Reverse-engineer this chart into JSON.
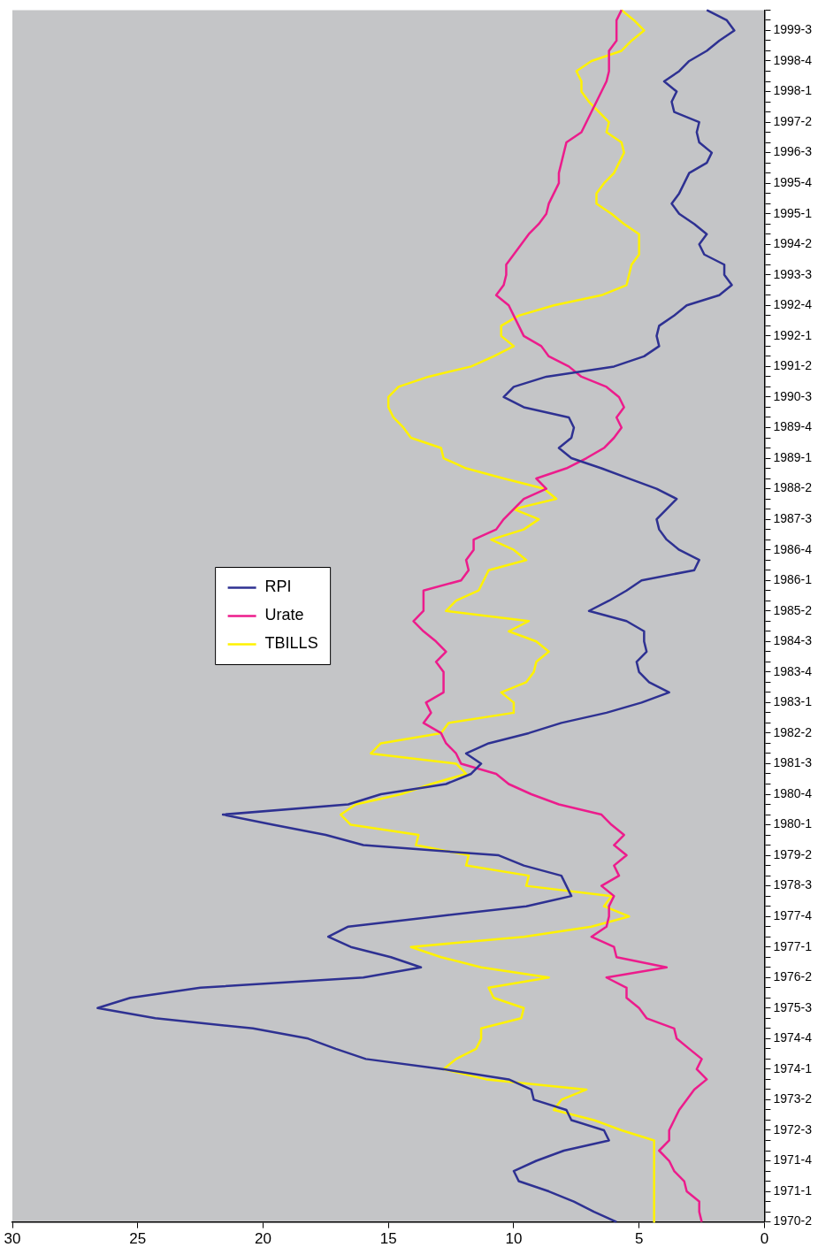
{
  "chart_data": {
    "type": "line",
    "categories": [
      null,
      null,
      "1999-3",
      null,
      null,
      "1998-4",
      null,
      null,
      "1998-1",
      null,
      null,
      "1997-2",
      null,
      null,
      "1996-3",
      null,
      null,
      "1995-4",
      null,
      null,
      "1995-1",
      null,
      null,
      "1994-2",
      null,
      null,
      "1993-3",
      null,
      null,
      "1992-4",
      null,
      null,
      "1992-1",
      null,
      null,
      "1991-2",
      null,
      null,
      "1990-3",
      null,
      null,
      "1989-4",
      null,
      null,
      "1989-1",
      null,
      null,
      "1988-2",
      null,
      null,
      "1987-3",
      null,
      null,
      "1986-4",
      null,
      null,
      "1986-1",
      null,
      null,
      "1985-2",
      null,
      null,
      "1984-3",
      null,
      null,
      "1983-4",
      null,
      null,
      "1983-1",
      null,
      null,
      "1982-2",
      null,
      null,
      "1981-3",
      null,
      null,
      "1980-4",
      null,
      null,
      "1980-1",
      null,
      null,
      "1979-2",
      null,
      null,
      "1978-3",
      null,
      null,
      "1977-4",
      null,
      null,
      "1977-1",
      null,
      null,
      "1976-2",
      null,
      null,
      "1975-3",
      null,
      null,
      "1974-4",
      null,
      null,
      "1974-1",
      null,
      null,
      "1973-2",
      null,
      null,
      "1972-3",
      null,
      null,
      "1971-4",
      null,
      null,
      "1971-1",
      null,
      null,
      "1970-2"
    ],
    "series": [
      {
        "name": "RPI",
        "color": "#2e3192",
        "values": [
          2.3,
          1.5,
          1.2,
          1.8,
          2.3,
          3.0,
          3.4,
          4.0,
          3.5,
          3.7,
          3.6,
          2.6,
          2.7,
          2.6,
          2.1,
          2.3,
          3.0,
          3.2,
          3.4,
          3.7,
          3.4,
          2.8,
          2.3,
          2.6,
          2.4,
          1.6,
          1.6,
          1.3,
          1.8,
          3.1,
          3.6,
          4.2,
          4.3,
          4.2,
          4.8,
          6.0,
          8.7,
          10.0,
          10.4,
          9.6,
          7.8,
          7.6,
          7.7,
          8.2,
          7.7,
          6.5,
          5.4,
          4.3,
          3.5,
          3.9,
          4.3,
          4.2,
          3.9,
          3.4,
          2.6,
          2.8,
          4.9,
          5.5,
          6.2,
          7.0,
          5.5,
          4.8,
          4.8,
          4.7,
          5.1,
          5.0,
          4.6,
          3.8,
          4.9,
          6.3,
          8.1,
          9.4,
          11.0,
          11.9,
          11.3,
          11.7,
          12.7,
          15.3,
          16.6,
          21.6,
          19.6,
          17.5,
          16.0,
          10.6,
          9.6,
          8.1,
          7.9,
          7.7,
          9.5,
          13.1,
          16.6,
          17.4,
          16.5,
          14.9,
          13.7,
          16.0,
          22.5,
          25.3,
          26.6,
          24.3,
          20.4,
          18.2,
          17.1,
          15.9,
          12.8,
          10.2,
          9.3,
          9.2,
          7.9,
          7.7,
          6.4,
          6.2,
          8.0,
          9.1,
          10.0,
          9.8,
          8.6,
          7.6,
          6.8,
          5.9
        ]
      },
      {
        "name": "Urate",
        "color": "#ec1c8c",
        "values": [
          5.7,
          5.9,
          5.9,
          5.9,
          6.2,
          6.2,
          6.2,
          6.3,
          6.5,
          6.7,
          6.9,
          7.1,
          7.3,
          7.9,
          8.0,
          8.1,
          8.2,
          8.2,
          8.4,
          8.6,
          8.7,
          9.0,
          9.4,
          9.7,
          10.0,
          10.3,
          10.3,
          10.4,
          10.7,
          10.2,
          10.0,
          9.8,
          9.6,
          8.9,
          8.6,
          7.8,
          7.3,
          6.3,
          5.8,
          5.6,
          5.9,
          5.7,
          6.0,
          6.4,
          7.1,
          7.9,
          9.1,
          8.7,
          9.6,
          10.0,
          10.4,
          10.7,
          11.6,
          11.6,
          11.9,
          11.8,
          12.1,
          13.6,
          13.6,
          13.6,
          14.0,
          13.6,
          13.1,
          12.7,
          13.1,
          12.8,
          12.8,
          12.8,
          13.5,
          13.3,
          13.6,
          12.9,
          12.7,
          12.3,
          12.1,
          10.7,
          10.2,
          9.3,
          8.2,
          6.5,
          6.1,
          5.6,
          6.0,
          5.5,
          6.0,
          5.8,
          6.5,
          6.0,
          6.2,
          6.2,
          6.3,
          6.9,
          6.0,
          5.9,
          3.9,
          6.3,
          5.5,
          5.5,
          5.0,
          4.7,
          3.6,
          3.5,
          3.0,
          2.5,
          2.7,
          2.3,
          2.8,
          3.1,
          3.4,
          3.6,
          3.8,
          3.8,
          4.2,
          3.8,
          3.6,
          3.2,
          3.1,
          2.6,
          2.6,
          2.5
        ]
      },
      {
        "name": "TBILLS",
        "color": "#fff200",
        "values": [
          5.7,
          5.2,
          4.8,
          5.3,
          5.7,
          6.9,
          7.5,
          7.3,
          7.3,
          7.0,
          6.6,
          6.2,
          6.3,
          5.7,
          5.6,
          5.8,
          6.0,
          6.4,
          6.7,
          6.7,
          6.1,
          5.6,
          5.0,
          5.0,
          5.0,
          5.3,
          5.4,
          5.5,
          6.5,
          8.4,
          9.8,
          10.5,
          10.5,
          10.0,
          10.8,
          11.7,
          13.4,
          14.6,
          15.0,
          15.0,
          14.8,
          14.4,
          14.1,
          12.9,
          12.8,
          11.9,
          10.4,
          8.8,
          8.3,
          10.0,
          9.0,
          9.6,
          10.9,
          10.0,
          9.5,
          11.0,
          11.2,
          11.4,
          12.3,
          12.7,
          9.4,
          10.2,
          9.1,
          8.6,
          9.1,
          9.2,
          9.5,
          10.5,
          10.0,
          10.0,
          12.6,
          12.9,
          15.3,
          15.7,
          12.3,
          11.9,
          13.3,
          14.5,
          16.3,
          16.9,
          16.5,
          13.8,
          13.9,
          11.8,
          11.9,
          9.4,
          9.5,
          6.1,
          6.4,
          5.4,
          6.9,
          9.6,
          14.1,
          12.9,
          11.3,
          8.6,
          11.0,
          10.8,
          9.6,
          9.7,
          11.3,
          11.3,
          11.5,
          12.3,
          12.8,
          11.1,
          7.1,
          8.1,
          8.4,
          6.8,
          5.7,
          4.4,
          4.4,
          4.4,
          4.4,
          4.4,
          4.4,
          4.4,
          4.4,
          4.4
        ]
      }
    ],
    "orientation": "horizontal",
    "xlim": [
      30,
      0
    ],
    "xticks": [
      30,
      25,
      20,
      15,
      10,
      5,
      0
    ],
    "grid": false,
    "legend": "left",
    "marker": "none",
    "line_style": "solid"
  }
}
